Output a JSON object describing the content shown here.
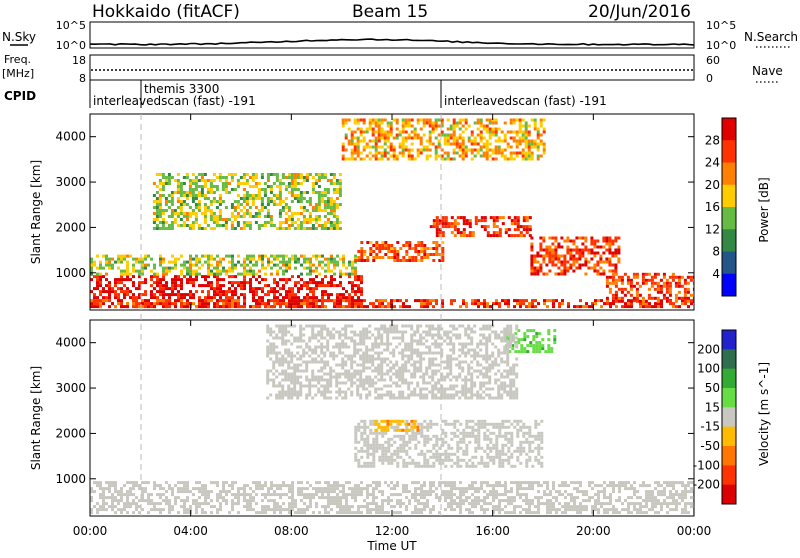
{
  "header": {
    "station": "Hokkaido (fitACF)",
    "beam": "Beam 15",
    "date": "20/Jun/2016"
  },
  "top_panel": {
    "left_label": "N.Sky",
    "left_ticks": [
      "10^5",
      "10^0"
    ],
    "right_ticks": [
      "10^5",
      "10^0"
    ],
    "right_label": "N.Search"
  },
  "freq_panel": {
    "left_label_1": "Freq.",
    "left_label_2": "[MHz]",
    "left_ticks": [
      "18",
      "8"
    ],
    "right_ticks": [
      "60",
      "0"
    ],
    "right_label": "Nave"
  },
  "cpid": {
    "label": "CPID",
    "segments": [
      {
        "start_hour": 1.85,
        "name": "themis 3300"
      },
      {
        "start_hour": 0.0,
        "name": "interleavedscan (fast) -191"
      },
      {
        "start_hour": 14.0,
        "name": "interleavedscan (fast) -191"
      }
    ]
  },
  "power_colorbar": {
    "label": "Power [dB]",
    "ticks": [
      "28",
      "24",
      "20",
      "16",
      "12",
      "8",
      "4"
    ],
    "colors": [
      "#e00000",
      "#ff3300",
      "#ff7f00",
      "#ffcc00",
      "#66bb44",
      "#338844",
      "#225588",
      "#0000ff"
    ]
  },
  "velocity_colorbar": {
    "label": "Velocity [m s^-1]",
    "ticks": [
      "200",
      "100",
      "50",
      "15",
      "-15",
      "-50",
      "-100",
      "-200"
    ],
    "colors": [
      "#2222cc",
      "#2f6f4f",
      "#33aa33",
      "#66dd44",
      "#c8c8c0",
      "#ffbb00",
      "#ff7700",
      "#ff3300",
      "#dd0000"
    ]
  },
  "x_axis": {
    "label": "Time UT",
    "ticks": [
      "00:00",
      "04:00",
      "08:00",
      "12:00",
      "16:00",
      "20:00",
      "00:00"
    ]
  },
  "y_axis": {
    "label": "Slant Range [km]",
    "ticks": [
      "1000",
      "2000",
      "3000",
      "4000"
    ]
  },
  "chart_data": {
    "type": "heatmap",
    "title": "Hokkaido (fitACF) Beam 15 20/Jun/2016",
    "xlabel": "Time UT",
    "ylabel": "Slant Range [km]",
    "xlim": [
      0,
      24
    ],
    "ylim": [
      180,
      4500
    ],
    "panels": [
      {
        "name": "Power",
        "unit": "dB",
        "scale": [
          0,
          30
        ],
        "regions": [
          {
            "t0": 0.0,
            "t1": 10.8,
            "r0": 280,
            "r1": 950,
            "value": 27
          },
          {
            "t0": 0.0,
            "t1": 24.0,
            "r0": 250,
            "r1": 420,
            "value": 24
          },
          {
            "t0": 0.0,
            "t1": 10.5,
            "r0": 950,
            "r1": 1400,
            "value": 14
          },
          {
            "t0": 10.5,
            "t1": 14.0,
            "r0": 1300,
            "r1": 1700,
            "value": 22
          },
          {
            "t0": 13.5,
            "t1": 17.5,
            "r0": 1800,
            "r1": 2250,
            "value": 25
          },
          {
            "t0": 17.5,
            "t1": 21.0,
            "r0": 1000,
            "r1": 1800,
            "value": 24
          },
          {
            "t0": 20.5,
            "t1": 24.0,
            "r0": 400,
            "r1": 1000,
            "value": 24
          },
          {
            "t0": 10.0,
            "t1": 18.0,
            "r0": 3500,
            "r1": 4400,
            "value": 18
          },
          {
            "t0": 2.5,
            "t1": 10.0,
            "r0": 2000,
            "r1": 3200,
            "value": 14
          }
        ]
      },
      {
        "name": "Velocity",
        "unit": "m s^-1",
        "scale": [
          -200,
          200
        ],
        "regions": [
          {
            "t0": 0.0,
            "t1": 24.0,
            "r0": 250,
            "r1": 950,
            "value": 0
          },
          {
            "t0": 10.5,
            "t1": 18.0,
            "r0": 1300,
            "r1": 2300,
            "value": 0
          },
          {
            "t0": 11.3,
            "t1": 13.0,
            "r0": 2050,
            "r1": 2300,
            "value": -40
          },
          {
            "t0": 16.5,
            "t1": 18.5,
            "r0": 3800,
            "r1": 4300,
            "value": 40
          },
          {
            "t0": 7.0,
            "t1": 17.0,
            "r0": 2800,
            "r1": 4400,
            "value": 0
          }
        ]
      }
    ]
  }
}
